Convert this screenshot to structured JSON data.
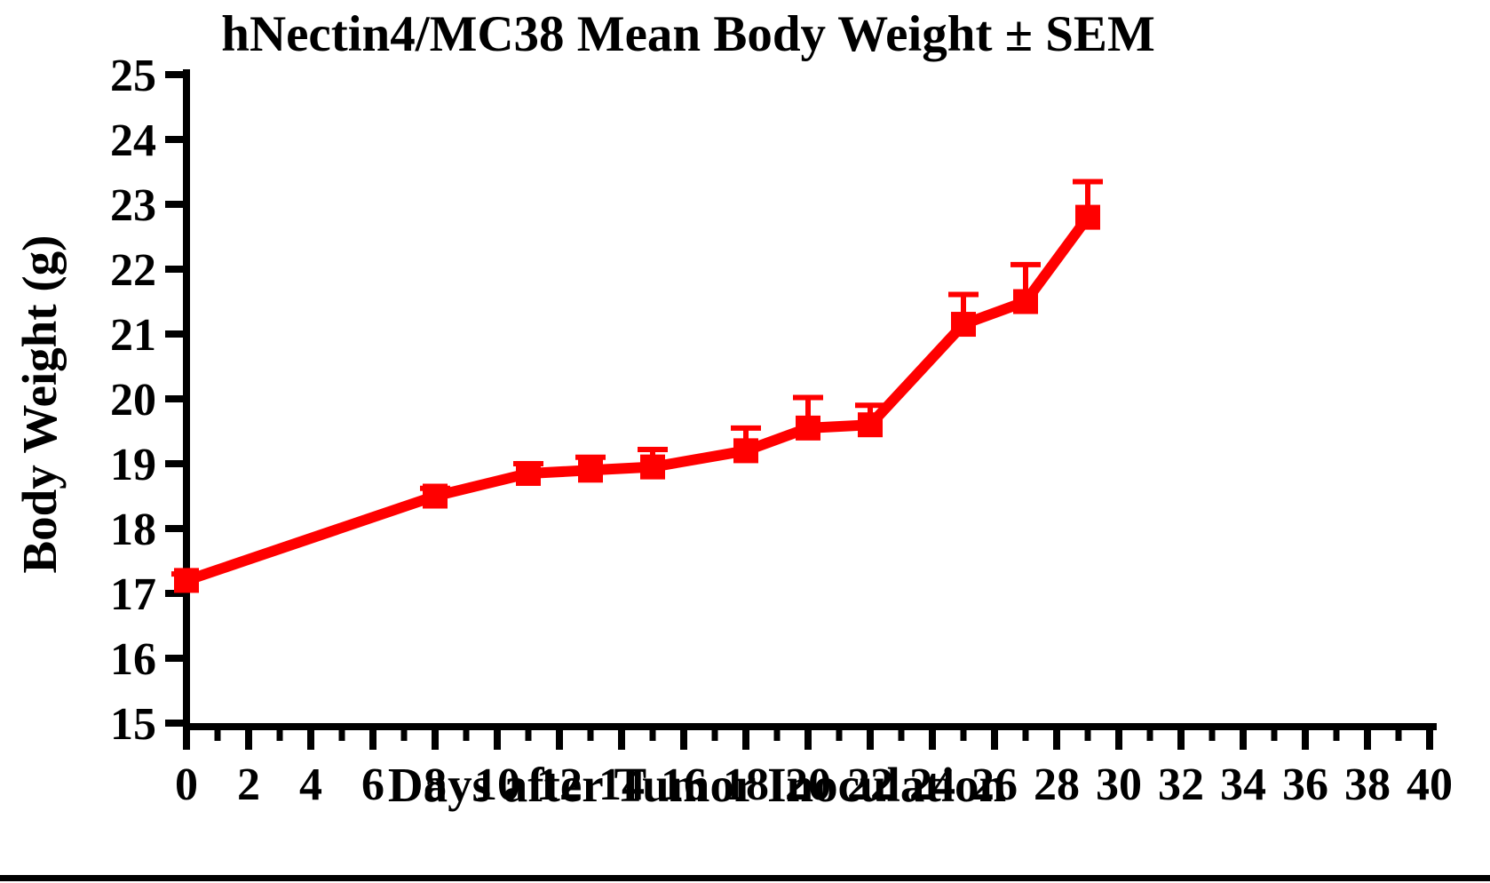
{
  "chart_data": {
    "type": "line",
    "title": "hNectin4/MC38 Mean Body Weight ± SEM",
    "xlabel": "Days after Tumor Inoculation",
    "ylabel": "Body Weight (g)",
    "xlim": [
      0,
      40
    ],
    "ylim": [
      15,
      25
    ],
    "x_major_tick_step": 2,
    "x_minor_tick_step": 1,
    "y_tick_step": 1,
    "x_tick_labels": [
      "0",
      "2",
      "4",
      "6",
      "8",
      "10",
      "12",
      "14",
      "16",
      "18",
      "20",
      "22",
      "24",
      "26",
      "28",
      "30",
      "32",
      "34",
      "36",
      "38",
      "40"
    ],
    "y_tick_labels": [
      "15",
      "16",
      "17",
      "18",
      "19",
      "20",
      "21",
      "22",
      "23",
      "24",
      "25"
    ],
    "grid": false,
    "legend_position": "none",
    "error_bar_style": "upper SEM caps only",
    "series": [
      {
        "name": "hNectin4/MC38",
        "color": "#ff0000",
        "marker": "square",
        "x": [
          0,
          8,
          11,
          13,
          15,
          18,
          20,
          22,
          25,
          27,
          29
        ],
        "y": [
          17.2,
          18.5,
          18.85,
          18.9,
          18.95,
          19.2,
          19.55,
          19.6,
          21.15,
          21.5,
          22.8
        ],
        "sem_upper": [
          0.1,
          0.12,
          0.15,
          0.2,
          0.27,
          0.35,
          0.47,
          0.3,
          0.46,
          0.57,
          0.55
        ]
      }
    ]
  },
  "page": {
    "bottom_rule": "black horizontal rule at bottom of page"
  }
}
